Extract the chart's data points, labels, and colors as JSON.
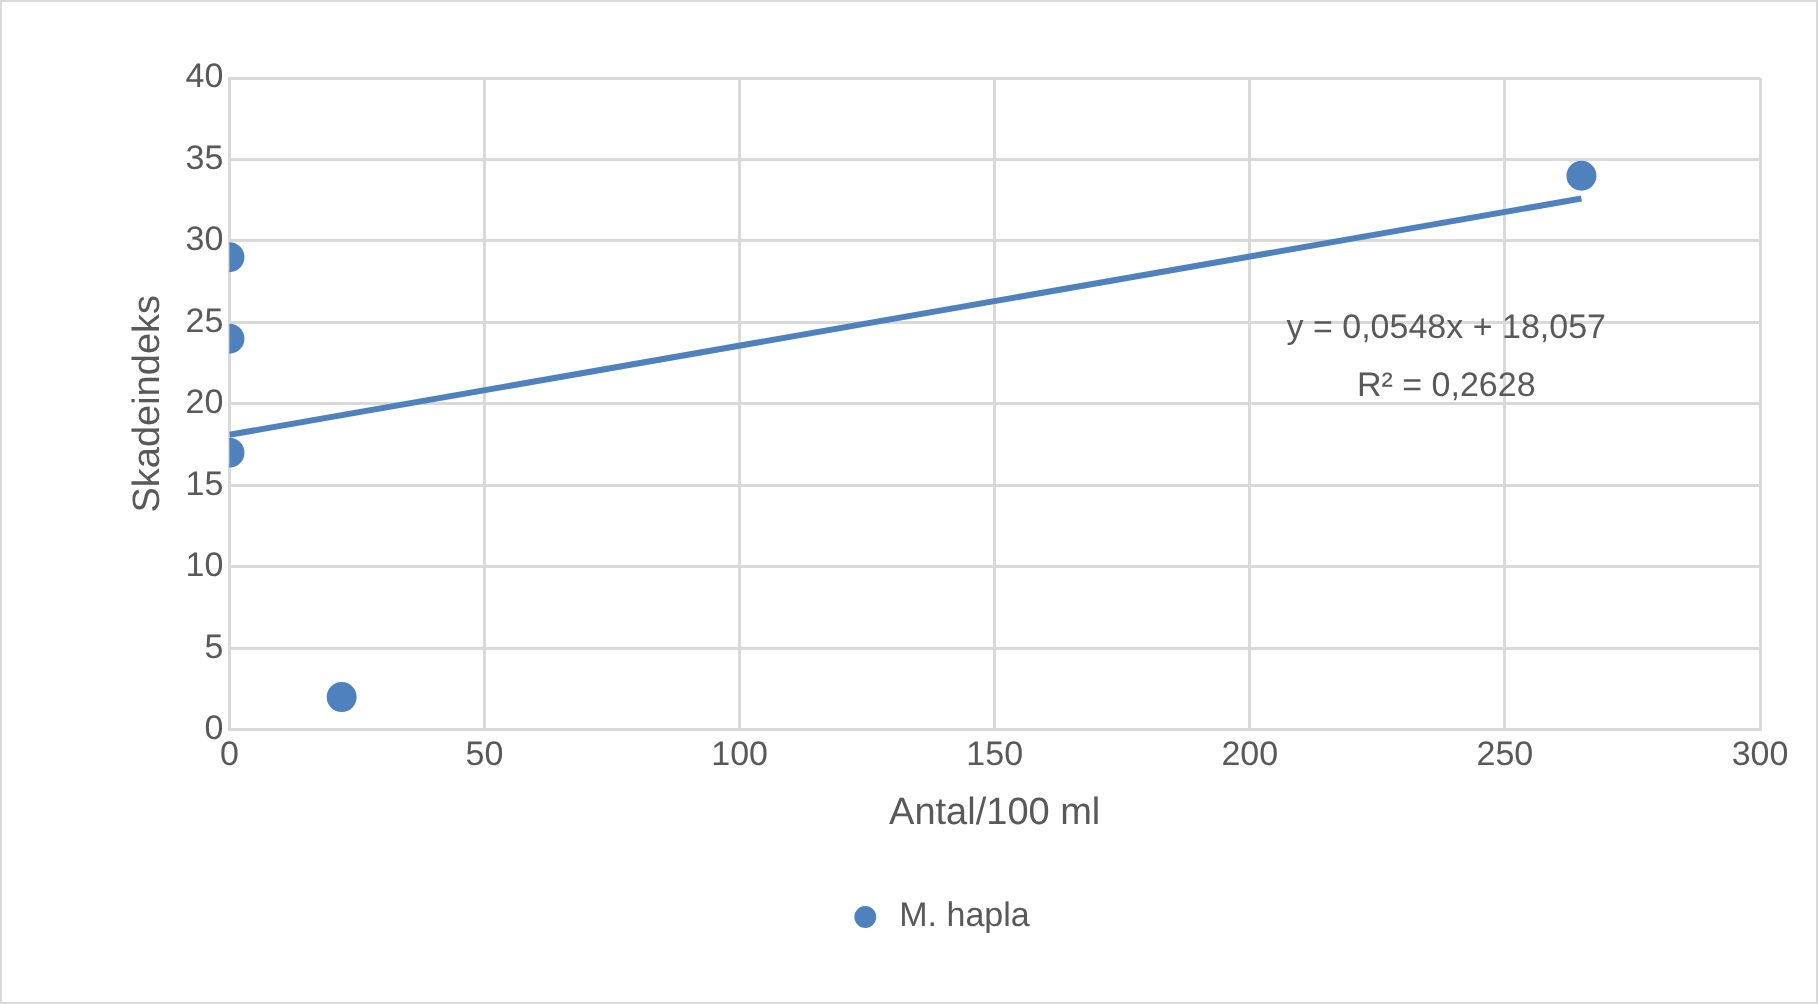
{
  "chart_data": {
    "type": "scatter",
    "xlabel": "Antal/100 ml",
    "ylabel": "Skadeindeks",
    "series": [
      {
        "name": "M. hapla",
        "color": "#4f81bd",
        "x": [
          0,
          0,
          0,
          22,
          265
        ],
        "values": [
          29,
          24,
          17,
          2,
          34
        ]
      },
      {
        "type": "line",
        "marker": "none",
        "color": "#4f81bd",
        "x": [
          0,
          265
        ],
        "values": [
          18.1,
          32.6
        ]
      }
    ],
    "annotations": [
      "y = 0,0548x + 18,057",
      "R² = 0,2628"
    ],
    "xlim": [
      0,
      300
    ],
    "xticks": [
      0,
      50,
      100,
      150,
      200,
      250,
      300
    ],
    "ylim": [
      0,
      40
    ],
    "yticks": [
      0,
      5,
      10,
      15,
      20,
      25,
      30,
      35,
      40
    ],
    "grid": true,
    "legend": "bottom",
    "marker": "circle"
  }
}
